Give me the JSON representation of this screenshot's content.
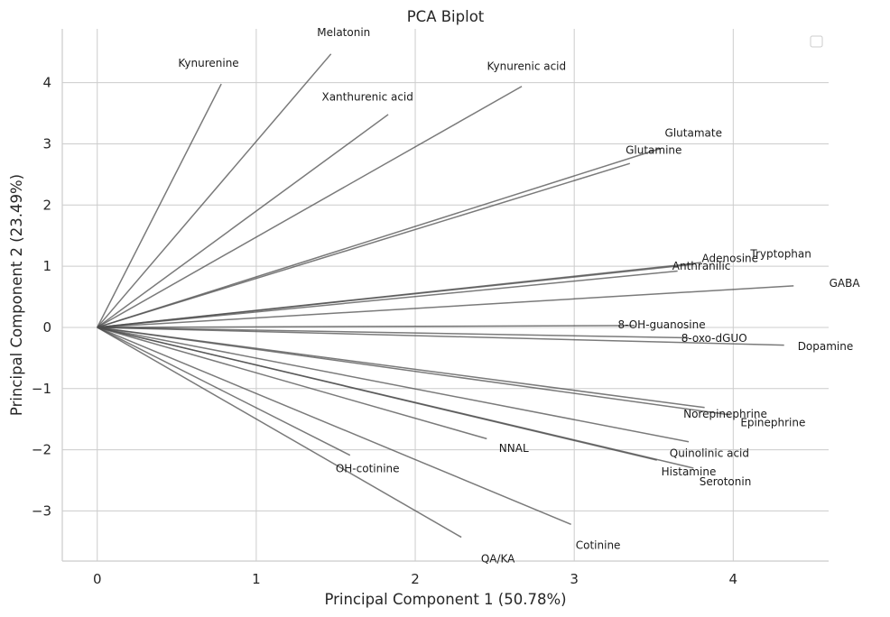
{
  "chart_data": {
    "type": "scatter",
    "subtype": "pca-biplot-loadings",
    "title": "PCA Biplot",
    "xlabel": "Principal Component 1 (50.78%)",
    "ylabel": "Principal Component 2 (23.49%)",
    "xlim": [
      -0.22,
      4.6
    ],
    "ylim": [
      -3.82,
      4.88
    ],
    "xticks": [
      0,
      1,
      2,
      3,
      4
    ],
    "yticks": [
      -3,
      -2,
      -1,
      0,
      1,
      2,
      3,
      4
    ],
    "grid": true,
    "legend": {
      "placement": "top-right",
      "entries": []
    },
    "arrow_color": "#4d4d4d",
    "origin": [
      0,
      0
    ],
    "loadings": [
      {
        "label": "Kynurenine",
        "x": 0.78,
        "y": 3.98,
        "label_x": 0.7,
        "label_y": 4.32
      },
      {
        "label": "Melatonin",
        "x": 1.47,
        "y": 4.47,
        "label_x": 1.55,
        "label_y": 4.82
      },
      {
        "label": "Xanthurenic acid",
        "x": 1.83,
        "y": 3.48,
        "label_x": 1.7,
        "label_y": 3.77
      },
      {
        "label": "Kynurenic acid",
        "x": 2.67,
        "y": 3.94,
        "label_x": 2.7,
        "label_y": 4.27
      },
      {
        "label": "Glutamate",
        "x": 3.55,
        "y": 2.93,
        "label_x": 3.75,
        "label_y": 3.18
      },
      {
        "label": "Glutamine",
        "x": 3.35,
        "y": 2.68,
        "label_x": 3.5,
        "label_y": 2.9
      },
      {
        "label": "Tryptophan",
        "x": 3.8,
        "y": 1.06,
        "label_x": 4.3,
        "label_y": 1.2
      },
      {
        "label": "Adenosine",
        "x": 3.75,
        "y": 1.03,
        "label_x": 3.98,
        "label_y": 1.13
      },
      {
        "label": "Anthranilic",
        "x": 3.65,
        "y": 0.92,
        "label_x": 3.8,
        "label_y": 1.0
      },
      {
        "label": "GABA",
        "x": 4.38,
        "y": 0.68,
        "label_x": 4.7,
        "label_y": 0.72
      },
      {
        "label": "8-OH-guanosine",
        "x": 3.38,
        "y": 0.03,
        "label_x": 3.55,
        "label_y": 0.04
      },
      {
        "label": "8-oxo-dGUO",
        "x": 3.72,
        "y": -0.17,
        "label_x": 3.88,
        "label_y": -0.18
      },
      {
        "label": "Dopamine",
        "x": 4.32,
        "y": -0.29,
        "label_x": 4.58,
        "label_y": -0.31
      },
      {
        "label": "Norepinephrine",
        "x": 3.82,
        "y": -1.31,
        "label_x": 3.95,
        "label_y": -1.42
      },
      {
        "label": "Epinephrine",
        "x": 3.98,
        "y": -1.43,
        "label_x": 4.25,
        "label_y": -1.56
      },
      {
        "label": "Quinolinic acid",
        "x": 3.72,
        "y": -1.87,
        "label_x": 3.85,
        "label_y": -2.06
      },
      {
        "label": "Histamine",
        "x": 3.52,
        "y": -2.17,
        "label_x": 3.72,
        "label_y": -2.36
      },
      {
        "label": "Serotonin",
        "x": 3.75,
        "y": -2.3,
        "label_x": 3.95,
        "label_y": -2.52
      },
      {
        "label": "NNAL",
        "x": 2.45,
        "y": -1.82,
        "label_x": 2.62,
        "label_y": -1.98
      },
      {
        "label": "OH-cotinine",
        "x": 1.59,
        "y": -2.09,
        "label_x": 1.7,
        "label_y": -2.31
      },
      {
        "label": "Cotinine",
        "x": 2.98,
        "y": -3.22,
        "label_x": 3.15,
        "label_y": -3.56
      },
      {
        "label": "QA/KA",
        "x": 2.29,
        "y": -3.43,
        "label_x": 2.52,
        "label_y": -3.78
      }
    ]
  }
}
